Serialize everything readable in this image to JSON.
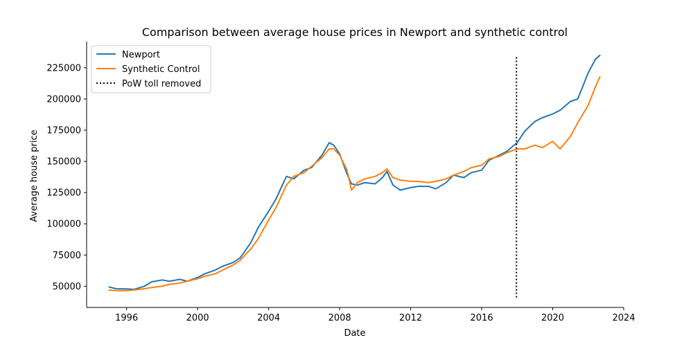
{
  "chart_data": {
    "type": "line",
    "title": "Comparison between average house prices in Newport and synthetic control",
    "xlabel": "Date",
    "ylabel": "Average house price",
    "xlim": [
      "1993-10-01",
      "2024-01-01"
    ],
    "ylim": [
      33000,
      246000
    ],
    "xticks": [
      {
        "label": "1996",
        "date": "1996-01-01"
      },
      {
        "label": "2000",
        "date": "2000-01-01"
      },
      {
        "label": "2004",
        "date": "2004-01-01"
      },
      {
        "label": "2008",
        "date": "2008-01-01"
      },
      {
        "label": "2012",
        "date": "2012-01-01"
      },
      {
        "label": "2016",
        "date": "2016-01-01"
      },
      {
        "label": "2020",
        "date": "2020-01-01"
      },
      {
        "label": "2024",
        "date": "2024-01-01"
      }
    ],
    "yticks": [
      {
        "label": "50000",
        "value": 50000
      },
      {
        "label": "75000",
        "value": 75000
      },
      {
        "label": "100000",
        "value": 100000
      },
      {
        "label": "125000",
        "value": 125000
      },
      {
        "label": "150000",
        "value": 150000
      },
      {
        "label": "175000",
        "value": 175000
      },
      {
        "label": "200000",
        "value": 200000
      },
      {
        "label": "225000",
        "value": 225000
      }
    ],
    "grid": false,
    "legend_position": "top-left",
    "series": [
      {
        "name": "Newport",
        "color": "#1f77b4",
        "points": [
          [
            "1995-01-01",
            49500
          ],
          [
            "1995-06-01",
            48000
          ],
          [
            "1996-01-01",
            47800
          ],
          [
            "1996-06-01",
            47500
          ],
          [
            "1997-01-01",
            50000
          ],
          [
            "1997-06-01",
            53500
          ],
          [
            "1998-01-01",
            55000
          ],
          [
            "1998-06-01",
            54000
          ],
          [
            "1999-01-01",
            55500
          ],
          [
            "1999-06-01",
            54000
          ],
          [
            "2000-01-01",
            57000
          ],
          [
            "2000-06-01",
            60000
          ],
          [
            "2001-01-01",
            63000
          ],
          [
            "2001-06-01",
            66000
          ],
          [
            "2002-01-01",
            69000
          ],
          [
            "2002-06-01",
            73000
          ],
          [
            "2003-01-01",
            85000
          ],
          [
            "2003-06-01",
            97000
          ],
          [
            "2004-01-01",
            110000
          ],
          [
            "2004-06-01",
            120000
          ],
          [
            "2005-01-01",
            138000
          ],
          [
            "2005-06-01",
            136000
          ],
          [
            "2006-01-01",
            143000
          ],
          [
            "2006-06-01",
            145000
          ],
          [
            "2007-01-01",
            155000
          ],
          [
            "2007-06-01",
            165000
          ],
          [
            "2007-09-01",
            163000
          ],
          [
            "2008-01-01",
            156000
          ],
          [
            "2008-06-01",
            140000
          ],
          [
            "2008-09-01",
            132000
          ],
          [
            "2009-01-01",
            131000
          ],
          [
            "2009-06-01",
            133000
          ],
          [
            "2010-01-01",
            132000
          ],
          [
            "2010-06-01",
            137000
          ],
          [
            "2010-09-01",
            142000
          ],
          [
            "2011-01-01",
            131000
          ],
          [
            "2011-06-01",
            127000
          ],
          [
            "2012-01-01",
            129000
          ],
          [
            "2012-06-01",
            130000
          ],
          [
            "2013-01-01",
            130000
          ],
          [
            "2013-06-01",
            128000
          ],
          [
            "2014-01-01",
            133000
          ],
          [
            "2014-06-01",
            139000
          ],
          [
            "2015-01-01",
            137000
          ],
          [
            "2015-06-01",
            141000
          ],
          [
            "2016-01-01",
            143000
          ],
          [
            "2016-06-01",
            151000
          ],
          [
            "2017-01-01",
            155000
          ],
          [
            "2017-06-01",
            158000
          ],
          [
            "2018-01-01",
            165000
          ],
          [
            "2018-06-01",
            174000
          ],
          [
            "2019-01-01",
            182000
          ],
          [
            "2019-06-01",
            185000
          ],
          [
            "2020-01-01",
            188000
          ],
          [
            "2020-06-01",
            191000
          ],
          [
            "2021-01-01",
            198000
          ],
          [
            "2021-06-01",
            200000
          ],
          [
            "2022-01-01",
            221000
          ],
          [
            "2022-06-01",
            232000
          ],
          [
            "2022-09-01",
            235000
          ]
        ]
      },
      {
        "name": "Synthetic Control",
        "color": "#ff7f0e",
        "points": [
          [
            "1995-01-01",
            47000
          ],
          [
            "1995-06-01",
            46500
          ],
          [
            "1996-01-01",
            46500
          ],
          [
            "1996-06-01",
            47000
          ],
          [
            "1997-01-01",
            48000
          ],
          [
            "1997-06-01",
            49000
          ],
          [
            "1998-01-01",
            50000
          ],
          [
            "1998-06-01",
            51500
          ],
          [
            "1999-01-01",
            52500
          ],
          [
            "1999-06-01",
            54000
          ],
          [
            "2000-01-01",
            56000
          ],
          [
            "2000-06-01",
            58000
          ],
          [
            "2001-01-01",
            60000
          ],
          [
            "2001-06-01",
            63000
          ],
          [
            "2002-01-01",
            67000
          ],
          [
            "2002-06-01",
            71000
          ],
          [
            "2003-01-01",
            80000
          ],
          [
            "2003-06-01",
            88000
          ],
          [
            "2004-01-01",
            103000
          ],
          [
            "2004-06-01",
            113000
          ],
          [
            "2005-01-01",
            131000
          ],
          [
            "2005-06-01",
            138000
          ],
          [
            "2006-01-01",
            141000
          ],
          [
            "2006-06-01",
            146000
          ],
          [
            "2007-01-01",
            153000
          ],
          [
            "2007-06-01",
            160000
          ],
          [
            "2007-09-01",
            160000
          ],
          [
            "2008-01-01",
            155000
          ],
          [
            "2008-06-01",
            143000
          ],
          [
            "2008-09-01",
            127000
          ],
          [
            "2009-01-01",
            133000
          ],
          [
            "2009-06-01",
            136000
          ],
          [
            "2010-01-01",
            138000
          ],
          [
            "2010-06-01",
            141000
          ],
          [
            "2010-09-01",
            144000
          ],
          [
            "2011-01-01",
            137000
          ],
          [
            "2011-06-01",
            135000
          ],
          [
            "2012-01-01",
            134000
          ],
          [
            "2012-06-01",
            134000
          ],
          [
            "2013-01-01",
            133000
          ],
          [
            "2013-06-01",
            134000
          ],
          [
            "2014-01-01",
            136000
          ],
          [
            "2014-06-01",
            139000
          ],
          [
            "2015-01-01",
            142000
          ],
          [
            "2015-06-01",
            145000
          ],
          [
            "2016-01-01",
            147000
          ],
          [
            "2016-06-01",
            152000
          ],
          [
            "2017-01-01",
            154000
          ],
          [
            "2017-06-01",
            157000
          ],
          [
            "2018-01-01",
            160000
          ],
          [
            "2018-06-01",
            160000
          ],
          [
            "2019-01-01",
            163000
          ],
          [
            "2019-06-01",
            161000
          ],
          [
            "2020-01-01",
            166000
          ],
          [
            "2020-06-01",
            160000
          ],
          [
            "2021-01-01",
            170000
          ],
          [
            "2021-06-01",
            181000
          ],
          [
            "2022-01-01",
            195000
          ],
          [
            "2022-06-01",
            210000
          ],
          [
            "2022-09-01",
            218000
          ]
        ]
      }
    ],
    "event_line": {
      "name": "PoW toll removed",
      "date": "2017-12-17",
      "y_range": [
        41000,
        235000
      ],
      "color": "#000000",
      "style": "dotted"
    }
  }
}
